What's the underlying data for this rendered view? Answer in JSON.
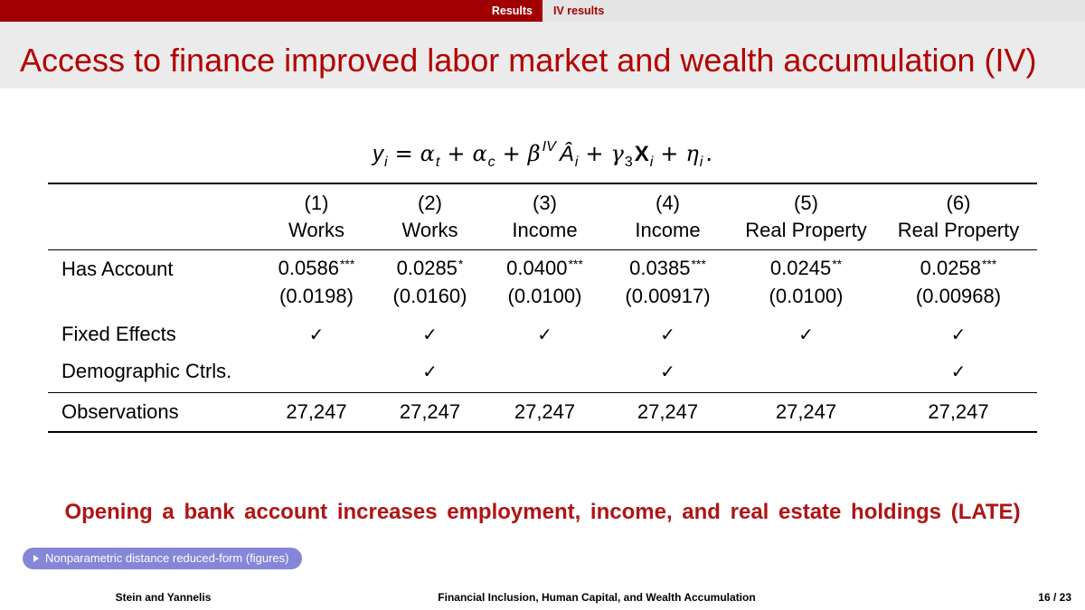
{
  "nav": {
    "section": "Results",
    "subsection": "IV results"
  },
  "title": "Access to finance improved labor market and wealth accumulation (IV)",
  "equation": [
    {
      "base": "y",
      "sub": "i"
    },
    {
      "op": "="
    },
    {
      "base": "α",
      "sub": "t"
    },
    {
      "op": "+"
    },
    {
      "base": "α",
      "sub": "c"
    },
    {
      "op": "+"
    },
    {
      "base": "β",
      "sup": "IV"
    },
    {
      "base": "Â",
      "sub": "i"
    },
    {
      "op": "+"
    },
    {
      "base": "γ",
      "sub": "3"
    },
    {
      "base": "X",
      "sub": "i"
    },
    {
      "op": "+"
    },
    {
      "base": "η",
      "sub": "i"
    },
    {
      "op": "."
    }
  ],
  "table": {
    "columns": [
      {
        "number": "(1)",
        "label": "Works"
      },
      {
        "number": "(2)",
        "label": "Works"
      },
      {
        "number": "(3)",
        "label": "Income"
      },
      {
        "number": "(4)",
        "label": "Income"
      },
      {
        "number": "(5)",
        "label": "Real Property"
      },
      {
        "number": "(6)",
        "label": "Real Property"
      }
    ],
    "has_account": {
      "label": "Has Account",
      "coefficients": [
        {
          "value": "0.0586",
          "stars": "***"
        },
        {
          "value": "0.0285",
          "stars": "*"
        },
        {
          "value": "0.0400",
          "stars": "***"
        },
        {
          "value": "0.0385",
          "stars": "***"
        },
        {
          "value": "0.0245",
          "stars": "**"
        },
        {
          "value": "0.0258",
          "stars": "***"
        }
      ],
      "standard_errors": [
        "(0.0198)",
        "(0.0160)",
        "(0.0100)",
        "(0.00917)",
        "(0.0100)",
        "(0.00968)"
      ]
    },
    "fixed_effects": {
      "label": "Fixed Effects",
      "cells": [
        "✓",
        "✓",
        "✓",
        "✓",
        "✓",
        "✓"
      ]
    },
    "demographic_controls": {
      "label": "Demographic Ctrls.",
      "cells": [
        "",
        "✓",
        "",
        "✓",
        "",
        "✓"
      ]
    },
    "observations": {
      "label": "Observations",
      "values": [
        "27,247",
        "27,247",
        "27,247",
        "27,247",
        "27,247",
        "27,247"
      ]
    }
  },
  "takeaway": "Opening a bank account increases employment, income, and real estate holdings (LATE)",
  "link_button": {
    "icon": "triangle-right-icon",
    "label": "Nonparametric distance reduced-form (figures)"
  },
  "footer": {
    "authors": "Stein and Yannelis",
    "presentation_title": "Financial Inclusion, Human Capital, and Wealth Accumulation",
    "page": "16 / 23"
  },
  "colors": {
    "nav_red": "#a00000",
    "nav_gray": "#e4e4e4",
    "title_band": "#ebebeb",
    "title_red": "#b30000",
    "takeaway_red": "#b01414",
    "button": "#8686d9"
  }
}
